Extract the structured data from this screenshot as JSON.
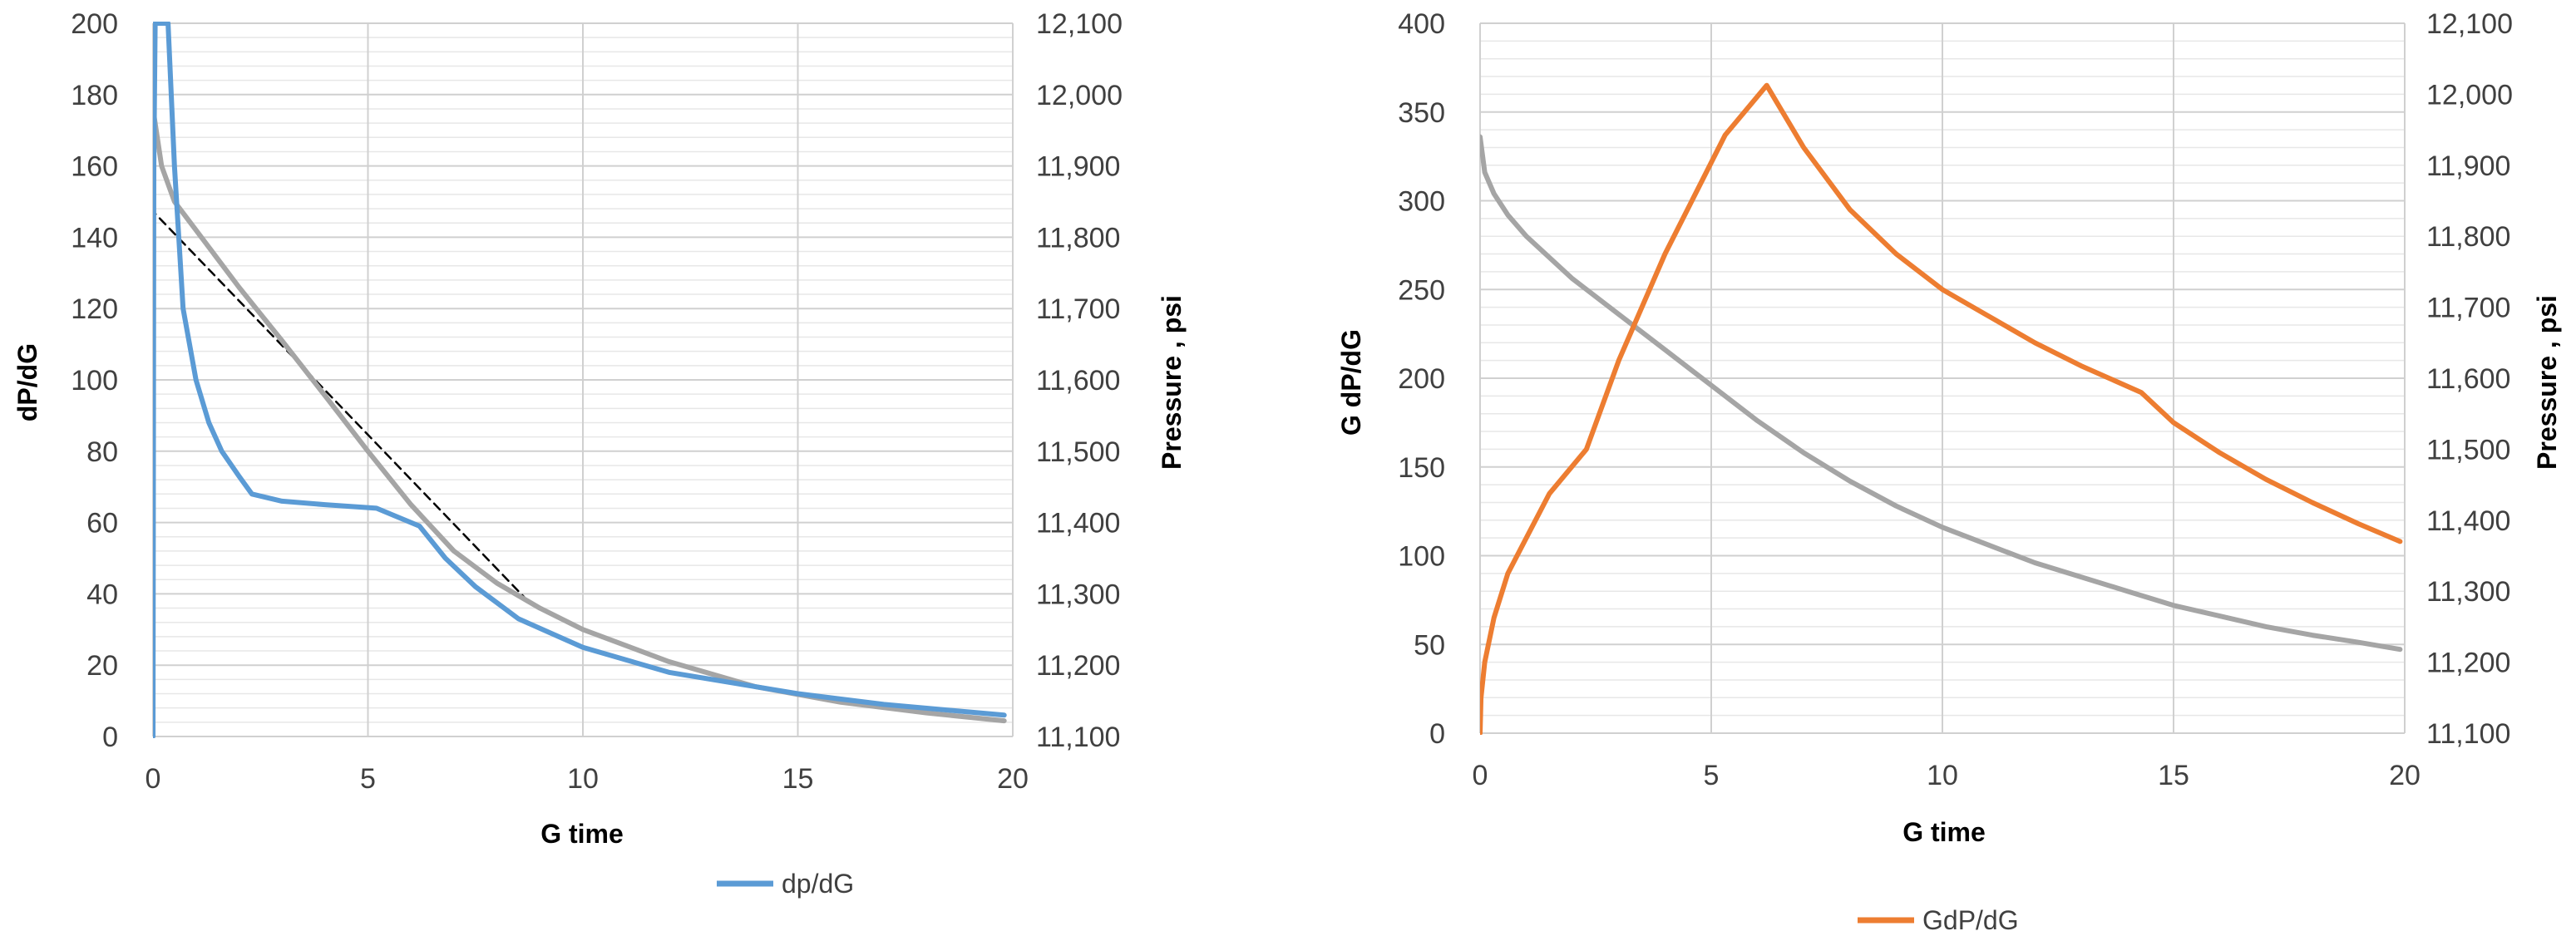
{
  "chart_data": [
    {
      "type": "line",
      "xlabel": "G time",
      "ylabel": "dP/dG",
      "y2label": "Pressure , psi",
      "xlim": [
        0,
        20
      ],
      "ylim": [
        0,
        200
      ],
      "y2lim": [
        11100,
        12100
      ],
      "x_ticks": [
        "0",
        "5",
        "10",
        "15",
        "20"
      ],
      "y_ticks": [
        "0",
        "20",
        "40",
        "60",
        "80",
        "100",
        "120",
        "140",
        "160",
        "180",
        "200"
      ],
      "y2_ticks": [
        "11,100",
        "11,200",
        "11,300",
        "11,400",
        "11,500",
        "11,600",
        "11,700",
        "11,800",
        "11,900",
        "12,000",
        "12,100"
      ],
      "grid": true,
      "legend_position": "bottom",
      "series": [
        {
          "name": "dp/dG",
          "axis": "left",
          "color": "#5B9BD5",
          "x": [
            0,
            0.02,
            0.05,
            0.1,
            0.15,
            0.25,
            0.35,
            0.5,
            0.7,
            1.0,
            1.3,
            1.6,
            2.0,
            2.3,
            3.0,
            4.0,
            5.2,
            5.6,
            6.2,
            6.8,
            7.5,
            8.5,
            10,
            12,
            14,
            15,
            17,
            19.8
          ],
          "y": [
            0,
            160,
            200,
            200,
            200,
            200,
            200,
            160,
            120,
            100,
            88,
            80,
            73,
            68,
            66,
            65,
            64,
            62,
            59,
            50,
            42,
            33,
            25,
            18,
            14,
            12,
            9,
            6
          ]
        },
        {
          "name": "Pressure",
          "axis": "right",
          "color": "#A5A5A5",
          "x": [
            0,
            0.2,
            0.5,
            1,
            2,
            3,
            4,
            5,
            6,
            7,
            8,
            9,
            10,
            12,
            14,
            16,
            18,
            19.8
          ],
          "y": [
            11980,
            11900,
            11850,
            11810,
            11730,
            11655,
            11578,
            11500,
            11425,
            11360,
            11315,
            11280,
            11250,
            11205,
            11170,
            11148,
            11133,
            11122
          ]
        },
        {
          "name": "",
          "axis": "left",
          "style": "dashed",
          "color": "#000000",
          "x": [
            -0.3,
            8.8
          ],
          "y": [
            151,
            37
          ]
        }
      ]
    },
    {
      "type": "line",
      "xlabel": "G time",
      "ylabel": "G dP/dG",
      "y2label": "Pressure , psi",
      "xlim": [
        0,
        20
      ],
      "ylim": [
        0,
        400
      ],
      "y2lim": [
        11100,
        12100
      ],
      "x_ticks": [
        "0",
        "5",
        "10",
        "15",
        "20"
      ],
      "y_ticks": [
        "0",
        "50",
        "100",
        "150",
        "200",
        "250",
        "300",
        "350",
        "400"
      ],
      "y2_ticks": [
        "11,100",
        "11,200",
        "11,300",
        "11,400",
        "11,500",
        "11,600",
        "11,700",
        "11,800",
        "11,900",
        "12,000",
        "12,100"
      ],
      "grid": true,
      "legend_position": "bottom",
      "series": [
        {
          "name": "GdP/dG",
          "axis": "left",
          "color": "#ED7D31",
          "x": [
            0,
            0.02,
            0.1,
            0.3,
            0.6,
            1,
            1.5,
            2.3,
            3,
            4,
            5.3,
            6.2,
            7,
            8,
            9,
            10,
            11,
            12,
            13,
            14.3,
            15,
            16,
            17,
            18,
            19,
            19.9
          ],
          "y": [
            0,
            20,
            40,
            65,
            90,
            110,
            135,
            160,
            210,
            270,
            337,
            365,
            330,
            295,
            270,
            250,
            235,
            220,
            207,
            192,
            175,
            158,
            143,
            130,
            118,
            108
          ]
        },
        {
          "name": "Pressure",
          "axis": "right",
          "color": "#A5A5A5",
          "x": [
            0,
            0.1,
            0.3,
            0.6,
            1,
            2,
            3,
            4,
            5,
            6,
            7,
            8,
            9,
            10,
            11,
            12,
            13,
            14,
            15,
            16,
            17,
            18,
            19,
            19.9
          ],
          "y": [
            11940,
            11890,
            11860,
            11830,
            11800,
            11740,
            11690,
            11640,
            11590,
            11540,
            11495,
            11455,
            11420,
            11390,
            11365,
            11340,
            11320,
            11300,
            11280,
            11265,
            11250,
            11238,
            11228,
            11218
          ]
        }
      ]
    }
  ]
}
